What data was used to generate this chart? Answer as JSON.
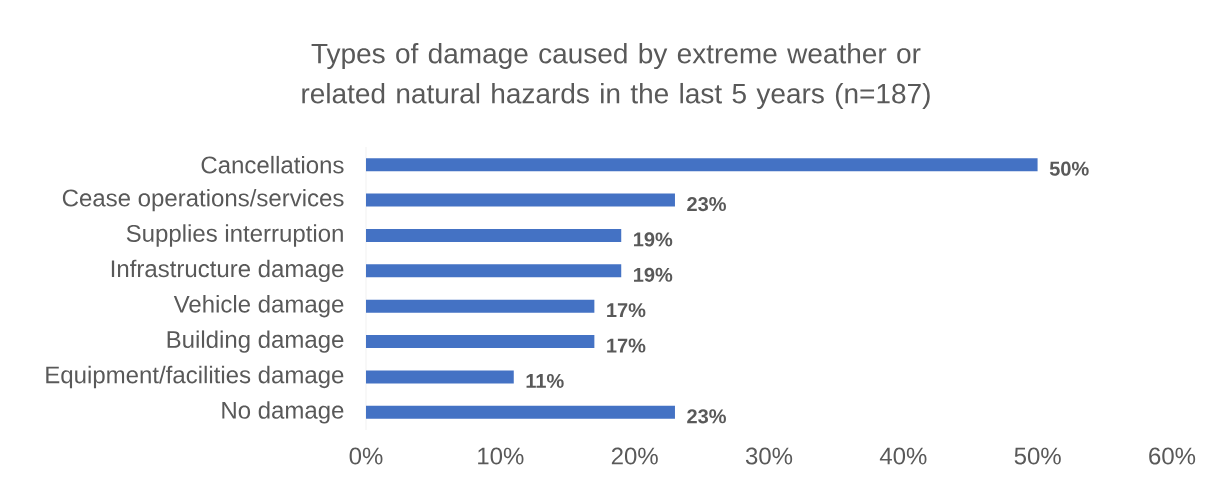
{
  "chart_data": {
    "type": "bar",
    "orientation": "horizontal",
    "title": "Types of damage caused by extreme weather or related natural hazards in the last 5 years (n=187)",
    "categories": [
      "Cancellations",
      "Cease operations/services",
      "Supplies interruption",
      "Infrastructure damage",
      "Vehicle damage",
      "Building damage",
      "Equipment/facilities damage",
      "No damage"
    ],
    "values": [
      50,
      23,
      19,
      19,
      17,
      17,
      11,
      23
    ],
    "value_labels": [
      "50%",
      "23%",
      "19%",
      "19%",
      "17%",
      "17%",
      "11%",
      "23%"
    ],
    "color": "#4472c4",
    "xlim": [
      0,
      60
    ],
    "xticks": [
      {
        "value": 0,
        "label": "0%"
      },
      {
        "value": 10,
        "label": "10%"
      },
      {
        "value": 20,
        "label": "20%"
      },
      {
        "value": 30,
        "label": "30%"
      },
      {
        "value": 40,
        "label": "40%"
      },
      {
        "value": 50,
        "label": "50%"
      },
      {
        "value": 60,
        "label": "60%"
      }
    ],
    "grid": false
  }
}
